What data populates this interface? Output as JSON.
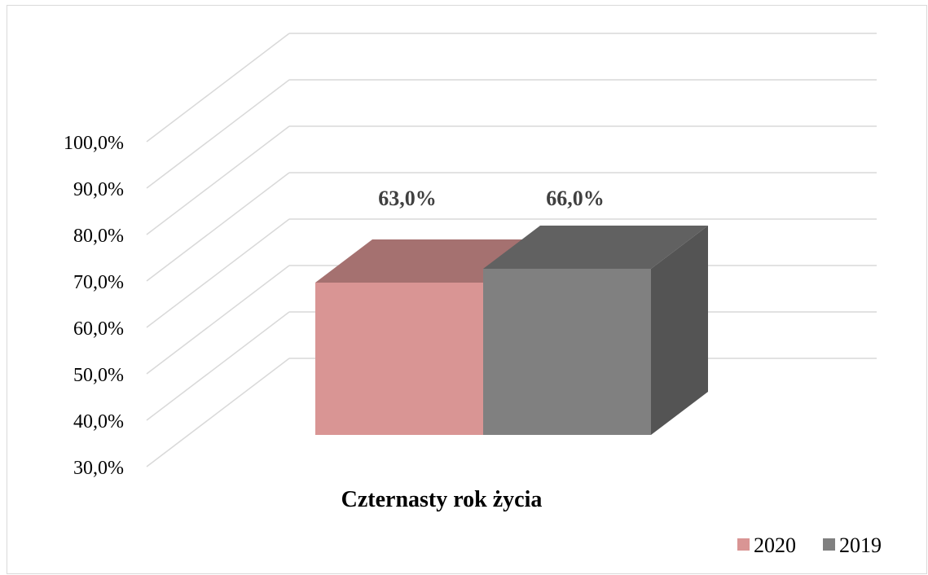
{
  "chart_data": {
    "type": "bar",
    "title": "",
    "xlabel": "",
    "ylabel": "",
    "categories": [
      "Czternasty rok życia"
    ],
    "series": [
      {
        "name": "2020",
        "values": [
          63.0
        ],
        "label": "63,0%",
        "color": "#d99594"
      },
      {
        "name": "2019",
        "values": [
          66.0
        ],
        "label": "66,0%",
        "color": "#808080"
      }
    ],
    "ylim": [
      30,
      100
    ],
    "y_ticks": [
      "30,0%",
      "40,0%",
      "50,0%",
      "60,0%",
      "70,0%",
      "80,0%",
      "90,0%",
      "100,0%"
    ],
    "grid": true,
    "legend_position": "bottom-right",
    "style": "3d-clustered-column"
  }
}
